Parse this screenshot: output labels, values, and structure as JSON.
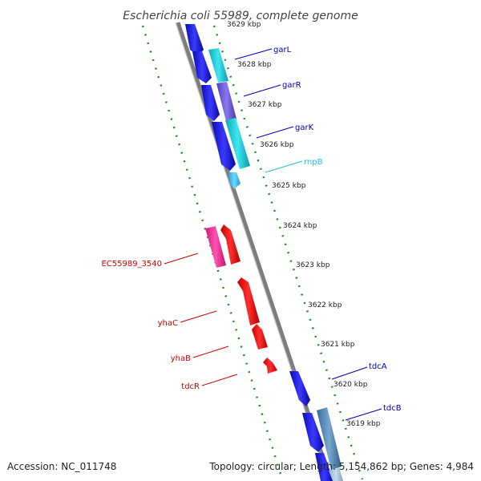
{
  "title": "Escherichia coli 55989, complete genome",
  "footer": {
    "accession": "Accession: NC_011748",
    "summary": "Topology: circular; Length: 5,154,862 bp; Genes: 4,984"
  },
  "colors": {
    "backbone": "#888888",
    "tick_track": "#2a8a2a",
    "forward_cds": "#1010dd",
    "reverse_cds": "#ee1111",
    "label_forward": "#0000bb",
    "label_reverse": "#cc0000",
    "rna_label": "#22bbdd"
  },
  "kbp_labels": [
    "3629 kbp",
    "3628 kbp",
    "3627 kbp",
    "3626 kbp",
    "3625 kbp",
    "3624 kbp",
    "3623 kbp",
    "3622 kbp",
    "3621 kbp",
    "3620 kbp",
    "3619 kbp"
  ],
  "gene_labels": [
    {
      "name": "garL",
      "strand": "forward"
    },
    {
      "name": "garR",
      "strand": "forward"
    },
    {
      "name": "garK",
      "strand": "forward"
    },
    {
      "name": "rnpB",
      "strand": "rna"
    },
    {
      "name": "EC55989_3540",
      "strand": "reverse"
    },
    {
      "name": "yhaC",
      "strand": "reverse"
    },
    {
      "name": "yhaB",
      "strand": "reverse"
    },
    {
      "name": "tdcR",
      "strand": "reverse"
    },
    {
      "name": "tdcA",
      "strand": "forward"
    },
    {
      "name": "tdcB",
      "strand": "forward"
    }
  ]
}
